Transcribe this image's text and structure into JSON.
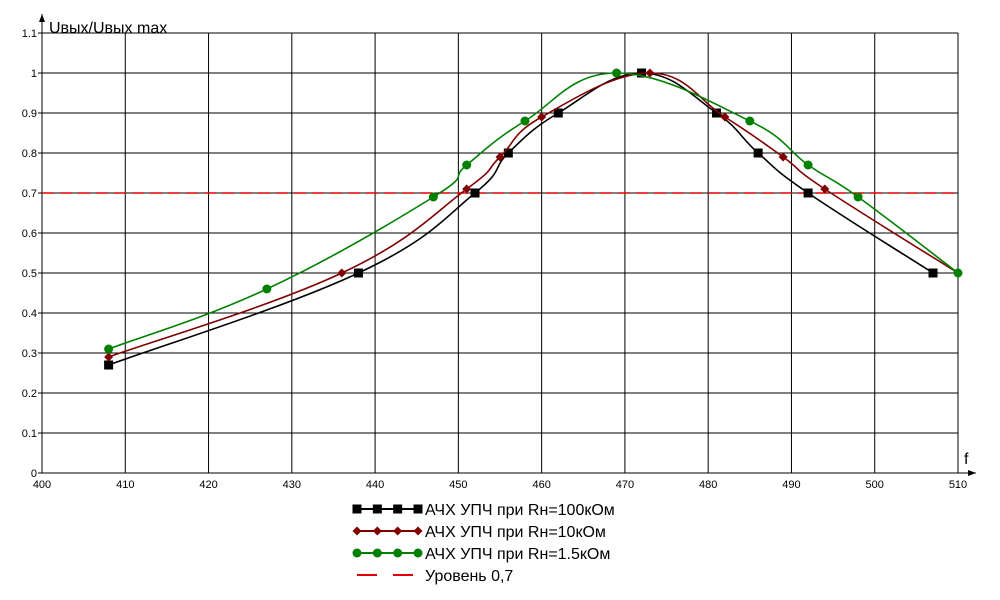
{
  "chart_data": {
    "type": "line",
    "title": "",
    "xlabel": "f",
    "ylabel": "Uвых/Uвых max",
    "xlim": [
      400,
      510
    ],
    "ylim": [
      0,
      1.1
    ],
    "x_ticks": [
      "400",
      "410",
      "420",
      "430",
      "440",
      "450",
      "460",
      "470",
      "480",
      "490",
      "500",
      "510"
    ],
    "y_ticks": [
      "0",
      "0.1",
      "0.2",
      "0.3",
      "0.4",
      "0.5",
      "0.6",
      "0.7",
      "0.8",
      "0.9",
      "1",
      "1.1"
    ],
    "grid": true,
    "legend_position": "bottom",
    "series": [
      {
        "name": "АЧХ УПЧ при Rн=100кОм",
        "color": "#000000",
        "marker": "square",
        "points": [
          [
            408,
            0.27
          ],
          [
            438,
            0.5
          ],
          [
            452,
            0.7
          ],
          [
            456,
            0.8
          ],
          [
            462,
            0.9
          ],
          [
            472,
            1.0
          ],
          [
            481,
            0.9
          ],
          [
            486,
            0.8
          ],
          [
            492,
            0.7
          ],
          [
            507,
            0.5
          ]
        ]
      },
      {
        "name": "АЧХ УПЧ при Rн=10кОм",
        "color": "#800000",
        "marker": "diamond",
        "points": [
          [
            408,
            0.29
          ],
          [
            436,
            0.5
          ],
          [
            451,
            0.71
          ],
          [
            455,
            0.79
          ],
          [
            460,
            0.89
          ],
          [
            473,
            1.0
          ],
          [
            482,
            0.89
          ],
          [
            489,
            0.79
          ],
          [
            494,
            0.71
          ],
          [
            510,
            0.5
          ]
        ]
      },
      {
        "name": "АЧХ УПЧ при Rн=1.5кОм",
        "color": "#008000",
        "marker": "circle",
        "points": [
          [
            408,
            0.31
          ],
          [
            427,
            0.46
          ],
          [
            447,
            0.69
          ],
          [
            451,
            0.77
          ],
          [
            458,
            0.88
          ],
          [
            469,
            1.0
          ],
          [
            485,
            0.88
          ],
          [
            492,
            0.77
          ],
          [
            498,
            0.69
          ],
          [
            510,
            0.5
          ]
        ]
      }
    ],
    "reference_line": {
      "name": "Уровень 0,7",
      "y": 0.7,
      "color": "#e00000",
      "style": "dashed"
    }
  }
}
